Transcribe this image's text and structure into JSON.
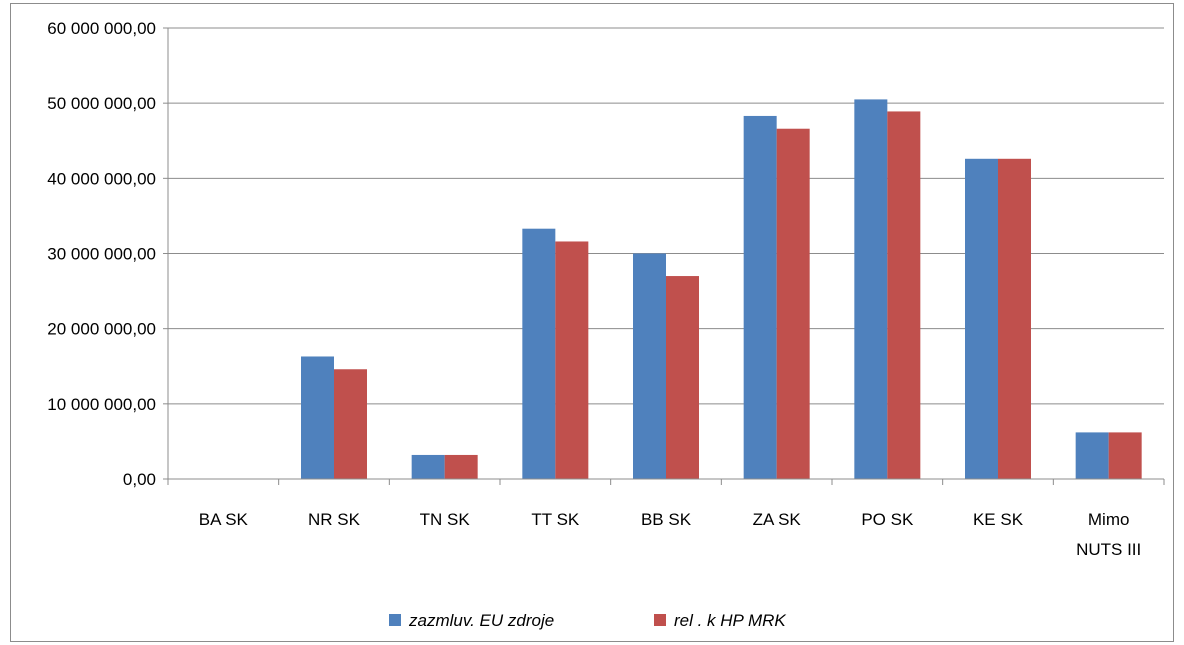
{
  "chart_data": {
    "type": "bar",
    "categories": [
      [
        "BA SK"
      ],
      [
        "NR SK"
      ],
      [
        "TN SK"
      ],
      [
        "TT SK"
      ],
      [
        "BB SK"
      ],
      [
        "ZA SK"
      ],
      [
        "PO SK"
      ],
      [
        "KE SK"
      ],
      [
        "Mimo",
        "NUTS III"
      ]
    ],
    "series": [
      {
        "name": "zazmluv. EU zdroje",
        "color": "#4f81bd",
        "values": [
          0,
          16300000,
          3200000,
          33300000,
          30000000,
          48300000,
          50500000,
          42600000,
          6200000
        ]
      },
      {
        "name": "rel . k HP MRK",
        "color": "#c0504d",
        "values": [
          0,
          14600000,
          3200000,
          31600000,
          27000000,
          46600000,
          48900000,
          42600000,
          6200000
        ]
      }
    ],
    "ylim": [
      0,
      60000000
    ],
    "yticks": [
      0,
      10000000,
      20000000,
      30000000,
      40000000,
      50000000,
      60000000
    ],
    "ytick_labels": [
      "0,00",
      "10 000 000,00",
      "20 000 000,00",
      "30 000 000,00",
      "40 000 000,00",
      "50 000 000,00",
      "60 000 000,00"
    ],
    "grid": true,
    "legend_position": "bottom",
    "title": "",
    "xlabel": "",
    "ylabel": ""
  }
}
